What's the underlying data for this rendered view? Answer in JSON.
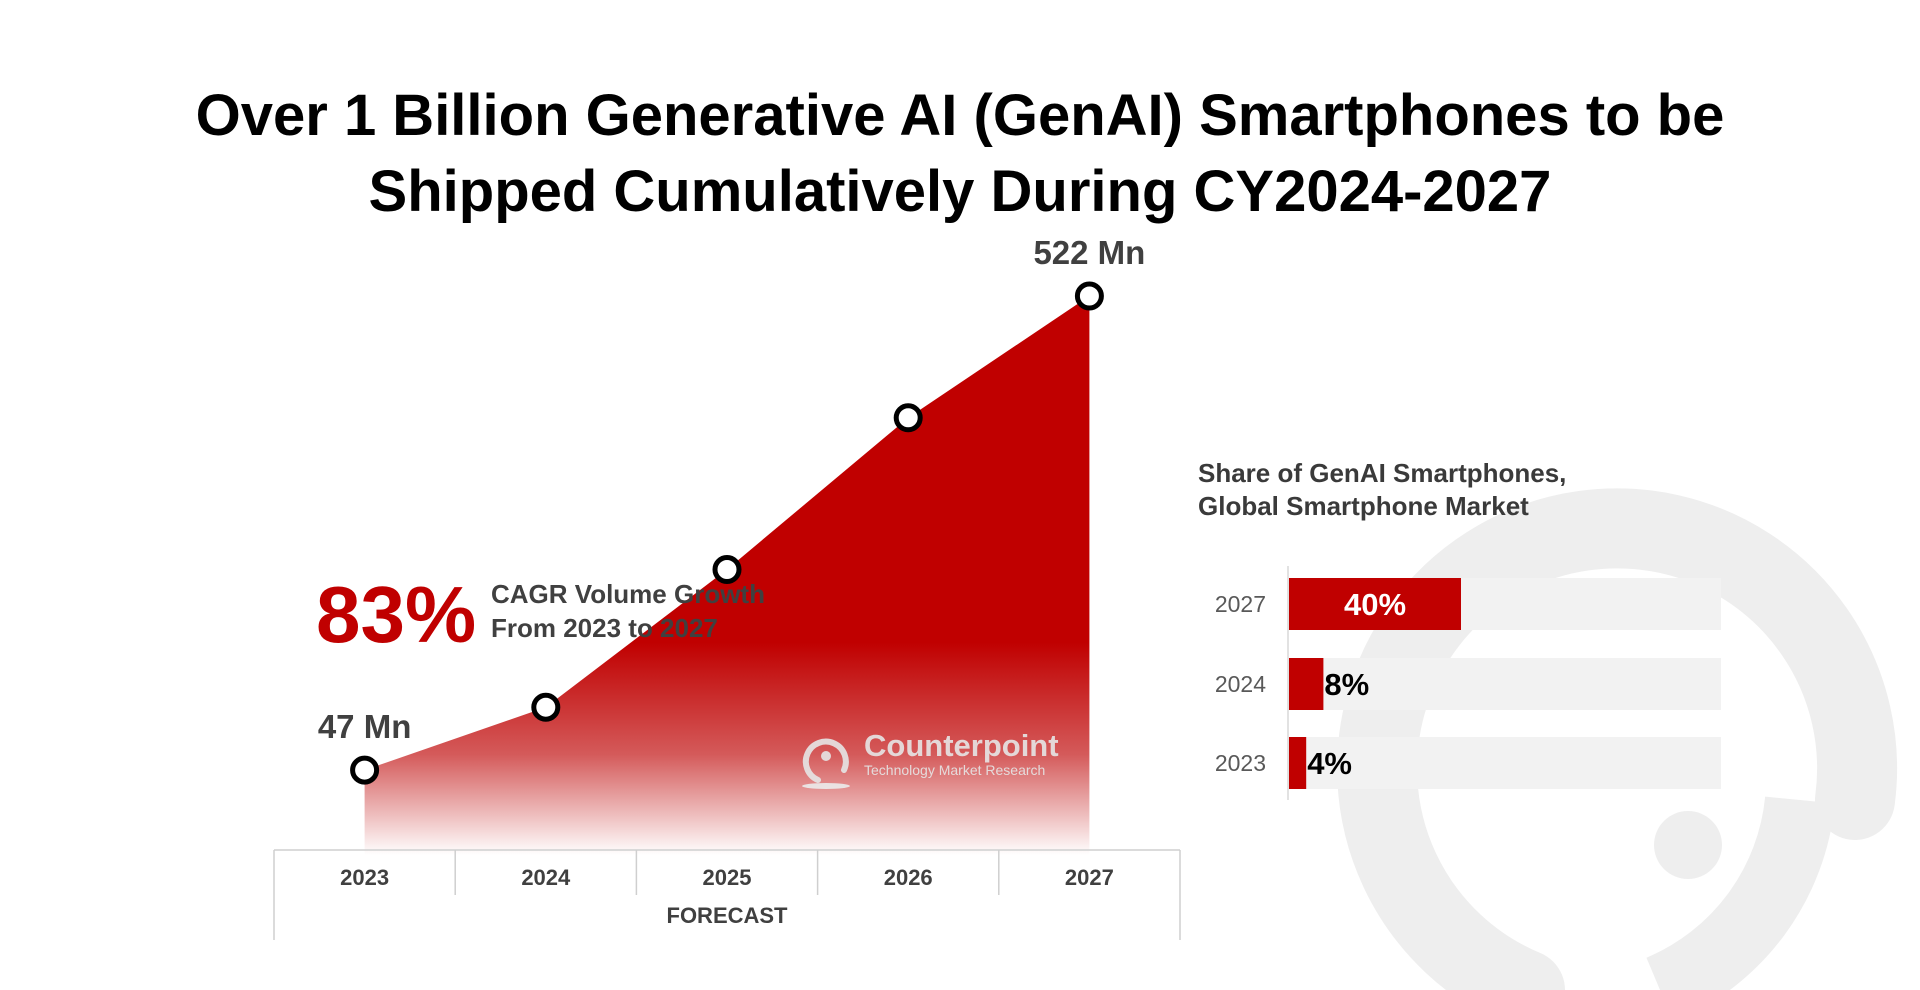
{
  "title_lines": [
    "Over 1 Billion Generative AI (GenAI) Smartphones to be",
    "Shipped Cumulatively During CY2024-2027"
  ],
  "cagr": {
    "value": "83%",
    "line1": "CAGR Volume Growth",
    "line2": "From 2023 to 2027"
  },
  "forecast_label": "FORECAST",
  "logo": {
    "name": "Counterpoint",
    "tagline": "Technology Market Research",
    "icon": "counterpoint-logo-icon"
  },
  "colors": {
    "accent": "#c00000",
    "bar_track": "#f2f2f2",
    "watermark": "#eeeeee"
  },
  "chart_data": [
    {
      "type": "area",
      "categories": [
        "2023",
        "2024",
        "2025",
        "2026",
        "2027"
      ],
      "series": [
        {
          "values": [
            47,
            110,
            248,
            400,
            522
          ]
        }
      ],
      "annotations": [
        {
          "x": "2023",
          "text": "47 Mn"
        },
        {
          "x": "2027",
          "text": "522 Mn"
        }
      ],
      "ylim": [
        0,
        522
      ],
      "xlabel": "FORECAST",
      "grid": false
    },
    {
      "type": "bar",
      "orientation": "horizontal",
      "title": "Share of GenAI Smartphones,\nGlobal Smartphone Market",
      "title_lines": [
        "Share of GenAI Smartphones,",
        "Global Smartphone Market"
      ],
      "categories": [
        "2027",
        "2024",
        "2023"
      ],
      "values": [
        40,
        8,
        4
      ],
      "labels": [
        "40%",
        "8%",
        "4%"
      ],
      "xlim": [
        0,
        100
      ]
    }
  ]
}
